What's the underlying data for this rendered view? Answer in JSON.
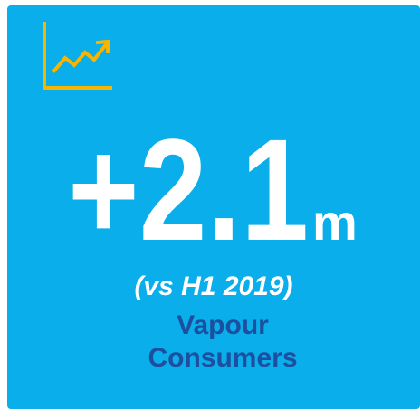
{
  "stat": {
    "value": "+2.1",
    "unit": "m"
  },
  "comparison": "(vs H1 2019)",
  "label": [
    "Vapour",
    "Consumers"
  ]
}
